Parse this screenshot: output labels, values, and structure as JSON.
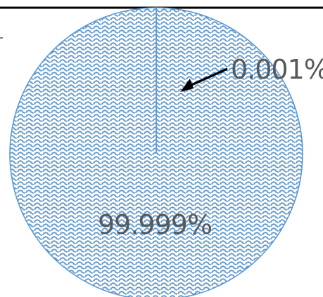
{
  "chart_data": {
    "type": "pie",
    "slices": [
      {
        "label": "0.001%",
        "value": 0.001
      },
      {
        "label": "99.999%",
        "value": 99.999
      }
    ],
    "colors": {
      "fill": "#2e75b6",
      "edge": "#5b9bd5",
      "label_text": "#595959",
      "arrow": "#000000",
      "frame": "#000000"
    },
    "pattern": "wave",
    "legend": "none"
  }
}
